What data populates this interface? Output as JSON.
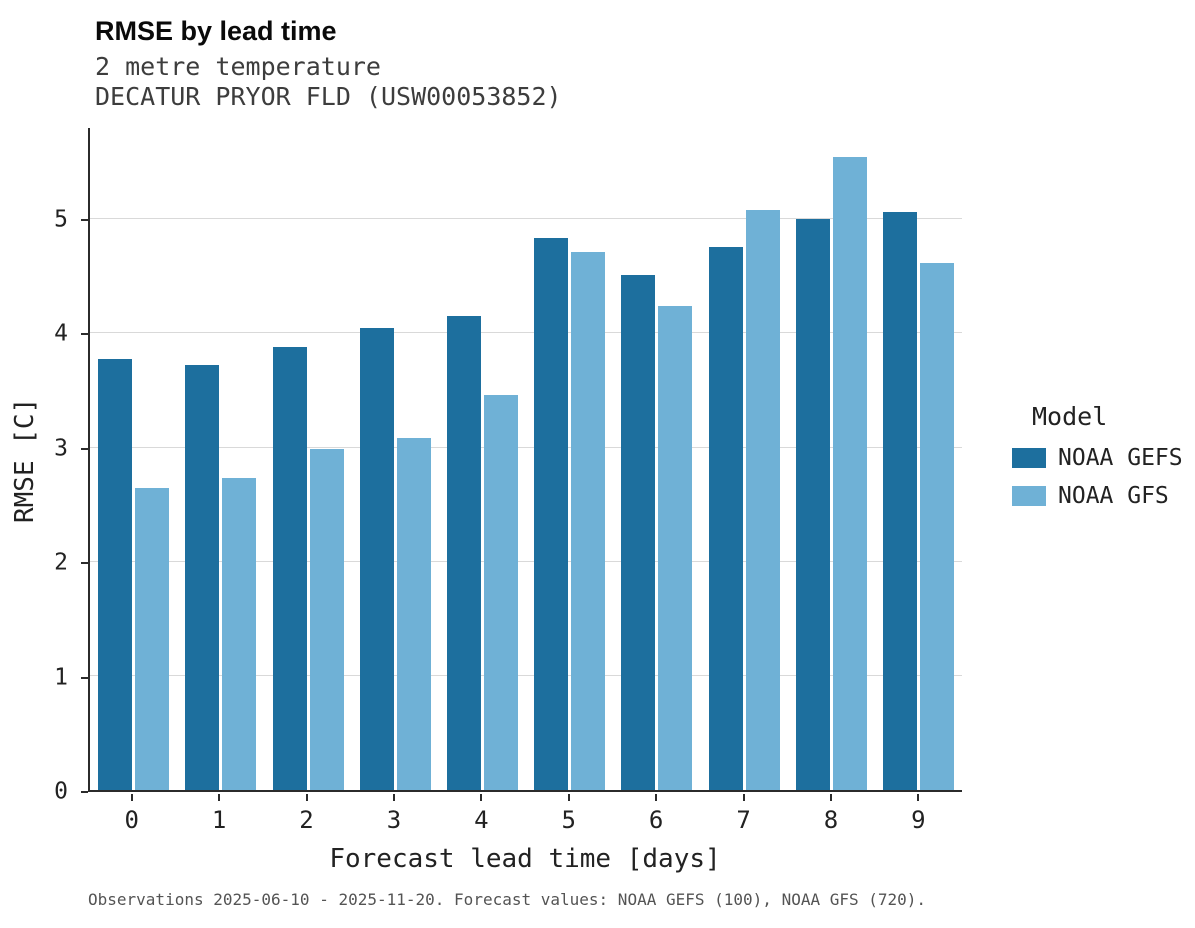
{
  "chart": {
    "title": "RMSE by lead time",
    "subtitle": "2 metre temperature",
    "station": "DECATUR PRYOR FLD (USW00053852)",
    "xlabel": "Forecast lead time [days]",
    "ylabel": "RMSE [C]",
    "legend_title": "Model",
    "caption": "Observations 2025-06-10 - 2025-11-20. Forecast values: NOAA GEFS (100), NOAA GFS (720)."
  },
  "chart_data": {
    "type": "bar",
    "title": "RMSE by lead time",
    "subtitle": "2 metre temperature",
    "station": "DECATUR PRYOR FLD (USW00053852)",
    "xlabel": "Forecast lead time [days]",
    "ylabel": "RMSE [C]",
    "categories": [
      "0",
      "1",
      "2",
      "3",
      "4",
      "5",
      "6",
      "7",
      "8",
      "9"
    ],
    "series": [
      {
        "name": "NOAA GEFS",
        "color": "#1d6f9e",
        "values": [
          3.78,
          3.72,
          3.88,
          4.05,
          4.15,
          4.84,
          4.51,
          4.76,
          5.0,
          5.06
        ]
      },
      {
        "name": "NOAA GFS",
        "color": "#6fb1d6",
        "values": [
          2.65,
          2.73,
          2.99,
          3.08,
          3.46,
          4.71,
          4.24,
          5.08,
          5.55,
          4.62
        ]
      }
    ],
    "ylim": [
      0,
      5.8
    ],
    "yticks": [
      0,
      1,
      2,
      3,
      4,
      5
    ],
    "grid": "horizontal",
    "legend_position": "right",
    "legend_title": "Model",
    "caption": "Observations 2025-06-10 - 2025-11-20. Forecast values: NOAA GEFS (100), NOAA GFS (720)."
  }
}
